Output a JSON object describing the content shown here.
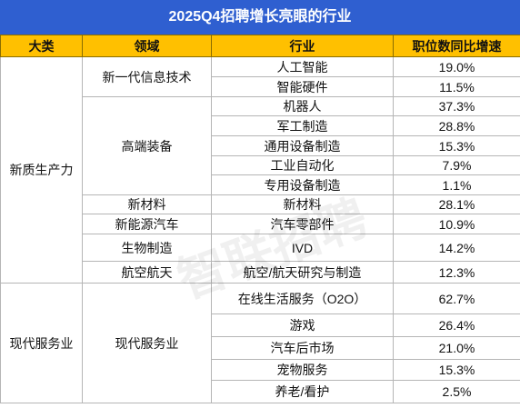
{
  "title": "2025Q4招聘增长亮眼的行业",
  "headers": [
    "大类",
    "领域",
    "行业",
    "职位数同比增速"
  ],
  "watermark": "智联招聘",
  "categories": [
    {
      "name": "新质生产力",
      "domains": [
        {
          "name": "新一代信息技术",
          "industries": [
            {
              "name": "人工智能",
              "growth": "19.0%"
            },
            {
              "name": "智能硬件",
              "growth": "11.5%"
            }
          ]
        },
        {
          "name": "高端装备",
          "industries": [
            {
              "name": "机器人",
              "growth": "37.3%"
            },
            {
              "name": "军工制造",
              "growth": "28.8%"
            },
            {
              "name": "通用设备制造",
              "growth": "15.3%"
            },
            {
              "name": "工业自动化",
              "growth": "7.9%"
            },
            {
              "name": "专用设备制造",
              "growth": "1.1%"
            }
          ]
        },
        {
          "name": "新材料",
          "industries": [
            {
              "name": "新材料",
              "growth": "28.1%"
            }
          ]
        },
        {
          "name": "新能源汽车",
          "industries": [
            {
              "name": "汽车零部件",
              "growth": "10.9%"
            }
          ]
        },
        {
          "name": "生物制造",
          "industries": [
            {
              "name": "IVD",
              "growth": "14.2%"
            }
          ]
        },
        {
          "name": "航空航天",
          "industries": [
            {
              "name": "航空/航天研究与制造",
              "growth": "12.3%"
            }
          ]
        }
      ]
    },
    {
      "name": "现代服务业",
      "domains": [
        {
          "name": "现代服务业",
          "industries": [
            {
              "name": "在线生活服务（O2O）",
              "growth": "62.7%"
            },
            {
              "name": "游戏",
              "growth": "26.4%"
            },
            {
              "name": "汽车后市场",
              "growth": "21.0%"
            },
            {
              "name": "宠物服务",
              "growth": "15.3%"
            },
            {
              "name": "养老/看护",
              "growth": "2.5%"
            }
          ]
        }
      ]
    }
  ]
}
